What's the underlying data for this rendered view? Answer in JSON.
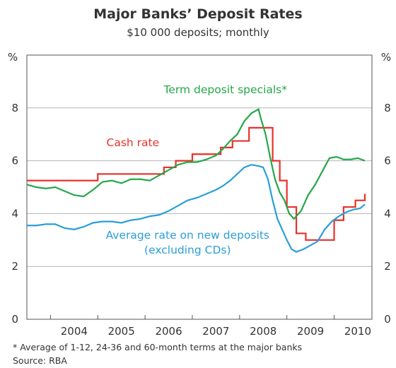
{
  "chart_data": {
    "type": "line",
    "title": "Major Banks’ Deposit Rates",
    "subtitle": "$10 000 deposits; monthly",
    "y_unit_left": "%",
    "y_unit_right": "%",
    "ylim": [
      0,
      10
    ],
    "y_ticks": [
      "0",
      "2",
      "4",
      "6",
      "8"
    ],
    "xlim": [
      2003.5,
      2010.8
    ],
    "x_ticks": [
      "2004",
      "2005",
      "2006",
      "2007",
      "2008",
      "2009",
      "2010"
    ],
    "grid": true,
    "footnotes": [
      "* Average of 1-12, 24-36 and 60-month terms at the major banks",
      "Source: RBA"
    ],
    "series": [
      {
        "name": "Cash rate",
        "color": "#e8312a",
        "label": "Cash rate",
        "step": true,
        "x": [
          2003.5,
          2004.0,
          2004.4,
          2005.0,
          2005.5,
          2006.0,
          2006.4,
          2006.65,
          2007.0,
          2007.3,
          2007.6,
          2007.85,
          2008.2,
          2008.5,
          2008.7,
          2008.85,
          2009.0,
          2009.2,
          2009.4,
          2009.6,
          2009.8,
          2010.0,
          2010.2,
          2010.45,
          2010.65
        ],
        "y": [
          5.25,
          5.25,
          5.25,
          5.5,
          5.5,
          5.5,
          5.75,
          6.0,
          6.25,
          6.25,
          6.5,
          6.75,
          7.25,
          7.25,
          6.0,
          5.25,
          4.25,
          3.25,
          3.0,
          3.0,
          3.0,
          3.75,
          4.25,
          4.5,
          4.75
        ]
      },
      {
        "name": "Term deposit specials*",
        "color": "#25a74a",
        "label": "Term deposit specials*",
        "step": false,
        "x": [
          2003.5,
          2003.7,
          2003.9,
          2004.1,
          2004.3,
          2004.5,
          2004.7,
          2004.9,
          2005.1,
          2005.3,
          2005.5,
          2005.7,
          2005.9,
          2006.1,
          2006.3,
          2006.5,
          2006.7,
          2006.9,
          2007.1,
          2007.3,
          2007.5,
          2007.65,
          2007.8,
          2007.95,
          2008.1,
          2008.25,
          2008.4,
          2008.45,
          2008.55,
          2008.65,
          2008.75,
          2008.85,
          2008.95,
          2009.05,
          2009.15,
          2009.3,
          2009.45,
          2009.6,
          2009.75,
          2009.9,
          2010.05,
          2010.2,
          2010.35,
          2010.5,
          2010.65
        ],
        "y": [
          5.1,
          5.0,
          4.95,
          5.0,
          4.85,
          4.7,
          4.65,
          4.9,
          5.2,
          5.25,
          5.15,
          5.3,
          5.3,
          5.25,
          5.45,
          5.65,
          5.85,
          5.95,
          5.95,
          6.05,
          6.2,
          6.45,
          6.75,
          7.0,
          7.5,
          7.8,
          7.95,
          7.6,
          7.0,
          6.1,
          5.3,
          4.8,
          4.5,
          4.0,
          3.8,
          4.1,
          4.7,
          5.1,
          5.6,
          6.1,
          6.15,
          6.05,
          6.05,
          6.1,
          6.0
        ]
      },
      {
        "name": "Average rate on new deposits (excluding CDs)",
        "color": "#2a9ed8",
        "label": [
          "Average rate on new deposits",
          "(excluding CDs)"
        ],
        "step": false,
        "x": [
          2003.5,
          2003.7,
          2003.9,
          2004.1,
          2004.3,
          2004.5,
          2004.7,
          2004.9,
          2005.1,
          2005.3,
          2005.5,
          2005.7,
          2005.9,
          2006.1,
          2006.3,
          2006.5,
          2006.7,
          2006.9,
          2007.1,
          2007.3,
          2007.5,
          2007.65,
          2007.8,
          2007.95,
          2008.1,
          2008.25,
          2008.4,
          2008.5,
          2008.6,
          2008.7,
          2008.8,
          2008.9,
          2009.0,
          2009.1,
          2009.2,
          2009.35,
          2009.5,
          2009.65,
          2009.8,
          2009.95,
          2010.1,
          2010.25,
          2010.4,
          2010.55,
          2010.65
        ],
        "y": [
          3.55,
          3.55,
          3.6,
          3.6,
          3.45,
          3.4,
          3.5,
          3.65,
          3.7,
          3.7,
          3.65,
          3.75,
          3.8,
          3.9,
          3.95,
          4.1,
          4.3,
          4.5,
          4.6,
          4.75,
          4.9,
          5.05,
          5.25,
          5.5,
          5.75,
          5.85,
          5.8,
          5.75,
          5.3,
          4.5,
          3.8,
          3.4,
          3.0,
          2.65,
          2.55,
          2.65,
          2.8,
          2.95,
          3.4,
          3.7,
          3.9,
          4.05,
          4.15,
          4.2,
          4.35
        ]
      }
    ]
  }
}
